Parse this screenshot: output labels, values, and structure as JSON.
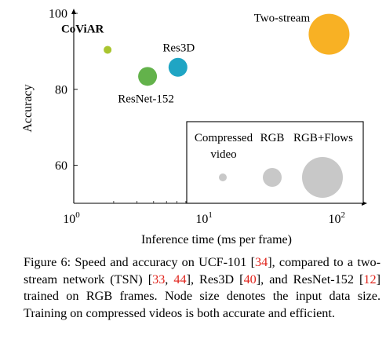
{
  "chart_data": {
    "type": "scatter",
    "xlabel": "Inference time (ms per frame)",
    "ylabel": "Accuracy",
    "xscale": "log",
    "xlim": [
      1,
      150
    ],
    "ylim": [
      50,
      100
    ],
    "x_ticks": [
      {
        "value": 1,
        "label": "10^0"
      },
      {
        "value": 10,
        "label": "10^1"
      },
      {
        "value": 100,
        "label": "10^2"
      }
    ],
    "y_ticks": [
      60,
      80,
      100
    ],
    "grid": false,
    "points": [
      {
        "label": "CoViAR",
        "x": 1.8,
        "y": 90.4,
        "size": "small",
        "color": "#a9c52f",
        "bold": true
      },
      {
        "label": "ResNet-152",
        "x": 3.6,
        "y": 83.4,
        "size": "medium",
        "color": "#63b24b",
        "bold": false
      },
      {
        "label": "Res3D",
        "x": 6.1,
        "y": 85.8,
        "size": "medium",
        "color": "#1fa5c4",
        "bold": false
      },
      {
        "label": "Two-stream",
        "x": 84,
        "y": 94.5,
        "size": "large",
        "color": "#f8b124",
        "bold": false
      }
    ],
    "legend": {
      "position": "bottom-right",
      "entries": [
        {
          "label": "Compressed video",
          "size": "small"
        },
        {
          "label": "RGB",
          "size": "medium"
        },
        {
          "label": "RGB+Flows",
          "size": "large"
        }
      ],
      "color": "#c8c8c8"
    }
  },
  "caption": {
    "prefix": "Figure 6: Speed and accuracy on UCF-101 [",
    "ref1": "34",
    "mid1": "], compared to a two-stream network (TSN) [",
    "ref2": "33",
    "comma": ", ",
    "ref3": "44",
    "mid2": "], Res3D [",
    "ref4": "40",
    "mid3": "], and ResNet-152 [",
    "ref5": "12",
    "suffix": "] trained on RGB frames. Node size denotes the input data size. Training on compressed videos is both accurate and efficient."
  }
}
